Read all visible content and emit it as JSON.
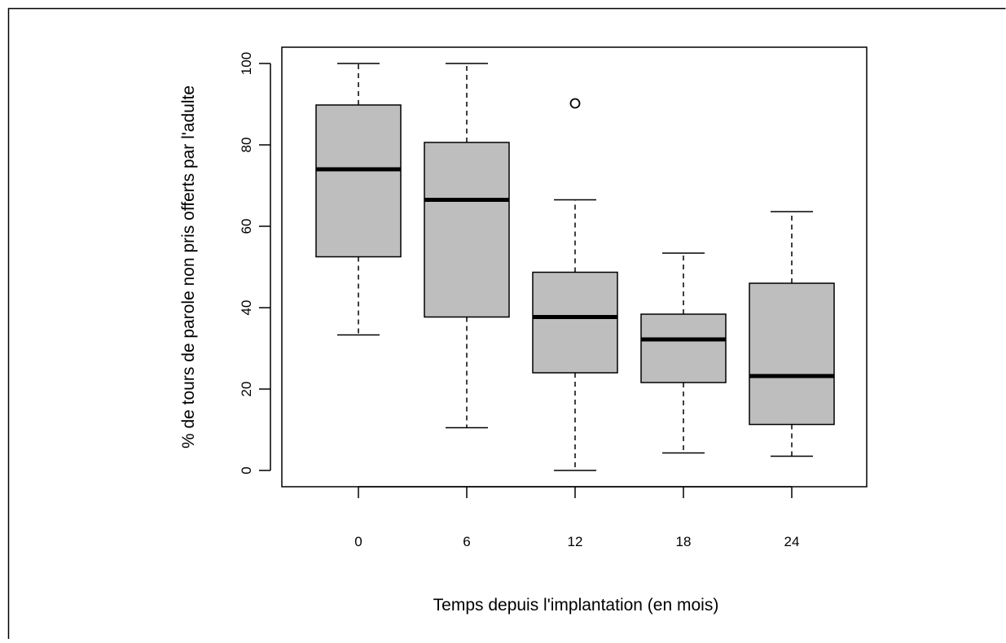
{
  "chart_data": {
    "type": "boxplot",
    "title": "",
    "xlabel": "Temps depuis l'implantation (en mois)",
    "ylabel": "% de tours de parole non pris offerts par l'adulte",
    "ylim": [
      -4,
      104
    ],
    "yticks": [
      0,
      20,
      40,
      60,
      80,
      100
    ],
    "categories": [
      "0",
      "6",
      "12",
      "18",
      "24"
    ],
    "boxes": [
      {
        "category": "0",
        "whisker_low": 33.3,
        "q1": 52.5,
        "median": 74.0,
        "q3": 89.8,
        "whisker_high": 100.0,
        "outliers": []
      },
      {
        "category": "6",
        "whisker_low": 10.5,
        "q1": 37.7,
        "median": 66.5,
        "q3": 80.6,
        "whisker_high": 100.0,
        "outliers": []
      },
      {
        "category": "12",
        "whisker_low": 0.0,
        "q1": 24.0,
        "median": 37.7,
        "q3": 48.7,
        "whisker_high": 66.5,
        "outliers": [
          90.2
        ]
      },
      {
        "category": "18",
        "whisker_low": 4.3,
        "q1": 21.6,
        "median": 32.2,
        "q3": 38.4,
        "whisker_high": 53.4,
        "outliers": []
      },
      {
        "category": "24",
        "whisker_low": 3.5,
        "q1": 11.3,
        "median": 23.2,
        "q3": 46.0,
        "whisker_high": 63.6,
        "outliers": []
      }
    ],
    "box_fill": "#bebebe",
    "grid": false,
    "legend": "none"
  }
}
